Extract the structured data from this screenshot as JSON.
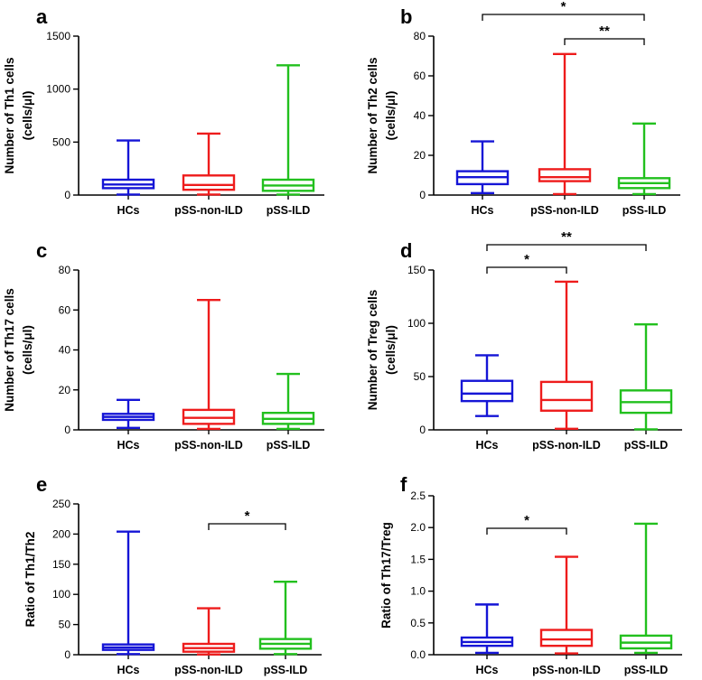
{
  "chart_data": [
    {
      "type": "box",
      "panel": "a",
      "ylabel": [
        "Number of  Th1 cells",
        "(cells/μl)"
      ],
      "yticks": [
        0,
        500,
        1000,
        1500
      ],
      "ylim": [
        0,
        1500
      ],
      "categories": [
        "HCs",
        "pSS-non-ILD",
        "pSS-ILD"
      ],
      "colors": [
        "#1515d6",
        "#ee1c1c",
        "#22c01e"
      ],
      "boxes": [
        {
          "min": 5,
          "q1": 65,
          "median": 100,
          "q3": 145,
          "max": 515
        },
        {
          "min": 5,
          "q1": 50,
          "median": 95,
          "q3": 185,
          "max": 580
        },
        {
          "min": 5,
          "q1": 40,
          "median": 90,
          "q3": 145,
          "max": 1225
        }
      ],
      "significance": []
    },
    {
      "type": "box",
      "panel": "b",
      "ylabel": [
        "Number of  Th2 cells",
        "(cells/μl)"
      ],
      "yticks": [
        0,
        20,
        40,
        60,
        80
      ],
      "ylim": [
        0,
        80
      ],
      "categories": [
        "HCs",
        "pSS-non-ILD",
        "pSS-ILD"
      ],
      "colors": [
        "#1515d6",
        "#ee1c1c",
        "#22c01e"
      ],
      "boxes": [
        {
          "min": 1,
          "q1": 5.5,
          "median": 9,
          "q3": 12,
          "max": 27
        },
        {
          "min": 0.5,
          "q1": 7,
          "median": 9,
          "q3": 13,
          "max": 71
        },
        {
          "min": 0.5,
          "q1": 3.5,
          "median": 6,
          "q3": 8.5,
          "max": 36
        }
      ],
      "significance": [
        {
          "from": 0,
          "to": 2,
          "label": "*",
          "level": 2
        },
        {
          "from": 1,
          "to": 2,
          "label": "**",
          "level": 1
        }
      ]
    },
    {
      "type": "box",
      "panel": "c",
      "ylabel": [
        "Number of  Th17 cells",
        "(cells/μl)"
      ],
      "yticks": [
        0,
        20,
        40,
        60,
        80
      ],
      "ylim": [
        0,
        80
      ],
      "categories": [
        "HCs",
        "pSS-non-ILD",
        "pSS-ILD"
      ],
      "colors": [
        "#1515d6",
        "#ee1c1c",
        "#22c01e"
      ],
      "boxes": [
        {
          "min": 1,
          "q1": 5,
          "median": 6.5,
          "q3": 8,
          "max": 15
        },
        {
          "min": 0.5,
          "q1": 3,
          "median": 6,
          "q3": 10,
          "max": 65
        },
        {
          "min": 0.5,
          "q1": 3,
          "median": 5.5,
          "q3": 8.5,
          "max": 28
        }
      ],
      "significance": []
    },
    {
      "type": "box",
      "panel": "d",
      "ylabel": [
        "Number of  Treg cells",
        "(cells/μl)"
      ],
      "yticks": [
        0,
        50,
        100,
        150
      ],
      "ylim": [
        0,
        150
      ],
      "categories": [
        "HCs",
        "pSS-non-ILD",
        "pSS-ILD"
      ],
      "colors": [
        "#1515d6",
        "#ee1c1c",
        "#22c01e"
      ],
      "boxes": [
        {
          "min": 13,
          "q1": 27,
          "median": 34,
          "q3": 46,
          "max": 70
        },
        {
          "min": 1,
          "q1": 18,
          "median": 28,
          "q3": 45,
          "max": 139
        },
        {
          "min": 0.5,
          "q1": 16,
          "median": 26,
          "q3": 37,
          "max": 99
        }
      ],
      "significance": [
        {
          "from": 0,
          "to": 1,
          "label": "*",
          "level": 1
        },
        {
          "from": 0,
          "to": 2,
          "label": "**",
          "level": 2
        }
      ]
    },
    {
      "type": "box",
      "panel": "e",
      "ylabel": [
        "Ratio of Th1/Th2"
      ],
      "yticks": [
        0,
        50,
        100,
        150,
        200,
        250
      ],
      "ylim": [
        0,
        250
      ],
      "categories": [
        "HCs",
        "pSS-non-ILD",
        "pSS-ILD"
      ],
      "colors": [
        "#1515d6",
        "#ee1c1c",
        "#22c01e"
      ],
      "boxes": [
        {
          "min": 1,
          "q1": 8,
          "median": 12,
          "q3": 17,
          "max": 204
        },
        {
          "min": 0.5,
          "q1": 5,
          "median": 11,
          "q3": 18,
          "max": 77
        },
        {
          "min": 1,
          "q1": 10,
          "median": 18,
          "q3": 26,
          "max": 121
        }
      ],
      "significance": [
        {
          "from": 1,
          "to": 2,
          "label": "*",
          "level": 1
        }
      ]
    },
    {
      "type": "box",
      "panel": "f",
      "ylabel": [
        "Ratio of Th17/Treg"
      ],
      "yticks": [
        "0.0",
        "0.5",
        "1.0",
        "1.5",
        "2.0",
        "2.5"
      ],
      "ylim": [
        0,
        2.5
      ],
      "categories": [
        "HCs",
        "pSS-non-ILD",
        "pSS-ILD"
      ],
      "colors": [
        "#1515d6",
        "#ee1c1c",
        "#22c01e"
      ],
      "boxes": [
        {
          "min": 0.03,
          "q1": 0.14,
          "median": 0.2,
          "q3": 0.27,
          "max": 0.79
        },
        {
          "min": 0.02,
          "q1": 0.14,
          "median": 0.24,
          "q3": 0.39,
          "max": 1.54
        },
        {
          "min": 0.03,
          "q1": 0.1,
          "median": 0.19,
          "q3": 0.3,
          "max": 2.06
        }
      ],
      "significance": [
        {
          "from": 0,
          "to": 1,
          "label": "*",
          "level": 1
        }
      ]
    }
  ]
}
